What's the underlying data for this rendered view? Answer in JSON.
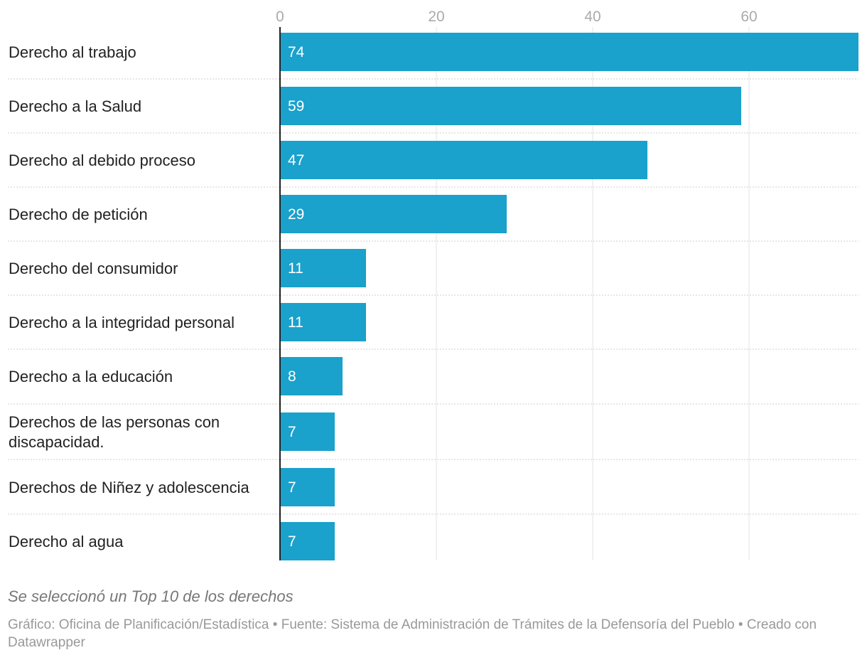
{
  "chart_data": {
    "type": "bar",
    "orientation": "horizontal",
    "title": "",
    "xlabel": "",
    "ylabel": "",
    "xlim": [
      0,
      74
    ],
    "ticks": [
      0,
      20,
      40,
      60
    ],
    "tick_labels": [
      "0",
      "20",
      "40",
      "60"
    ],
    "grid": true,
    "categories": [
      [
        "Derecho al trabajo"
      ],
      [
        "Derecho a la Salud"
      ],
      [
        "Derecho al debido proceso"
      ],
      [
        "Derecho de petición"
      ],
      [
        "Derecho del consumidor"
      ],
      [
        "Derecho a la integridad personal"
      ],
      [
        "Derecho a la educación"
      ],
      [
        "Derechos de las personas con",
        "discapacidad."
      ],
      [
        "Derechos de Niñez y adolescencia"
      ],
      [
        "Derecho al agua"
      ]
    ],
    "values": [
      74,
      59,
      47,
      29,
      11,
      11,
      8,
      7,
      7,
      7
    ],
    "bar_color": "#1aa1cc"
  },
  "notes": {
    "subtitle_note": "Se seleccionó un Top 10 de los derechos",
    "source_text": "Gráfico: Oficina de Planificación/Estadística • Fuente: Sistema de Administración de Trámites de la Defensoría del Pueblo • Creado con Datawrapper"
  }
}
